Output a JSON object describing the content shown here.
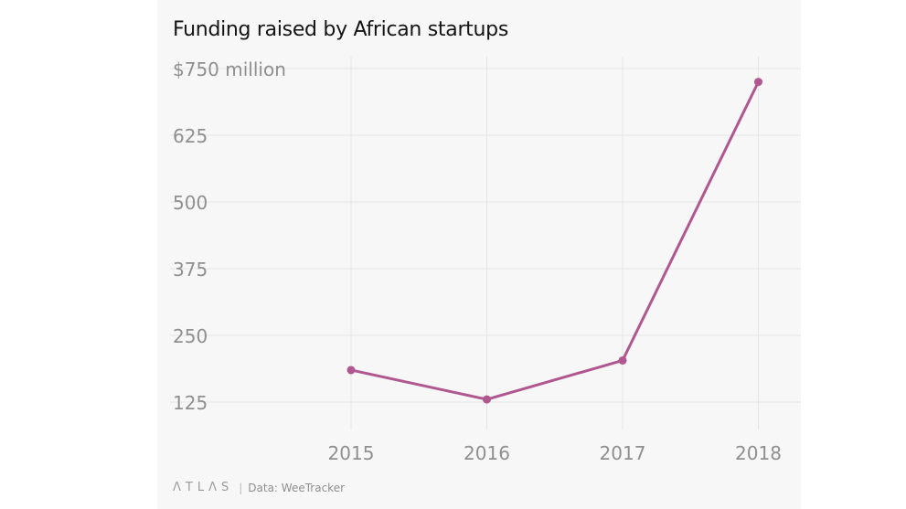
{
  "chart_data": {
    "type": "line",
    "title": "Funding raised by African startups",
    "categories": [
      "2015",
      "2016",
      "2017",
      "2018"
    ],
    "series": [
      {
        "name": "Funding raised",
        "values": [
          185,
          130,
          203,
          725
        ],
        "color": "#b0578f"
      }
    ],
    "y_ticks": [
      125,
      250,
      375,
      500,
      625,
      750
    ],
    "y_tick_labels": [
      "125",
      "250",
      "375",
      "500",
      "625",
      "$750 million"
    ],
    "ylim": [
      60,
      775
    ],
    "grid": true,
    "xlabel": "",
    "ylabel": ""
  },
  "footer": {
    "logo": "ΛTLΛS",
    "separator": "|",
    "source": "Data: WeeTracker"
  }
}
